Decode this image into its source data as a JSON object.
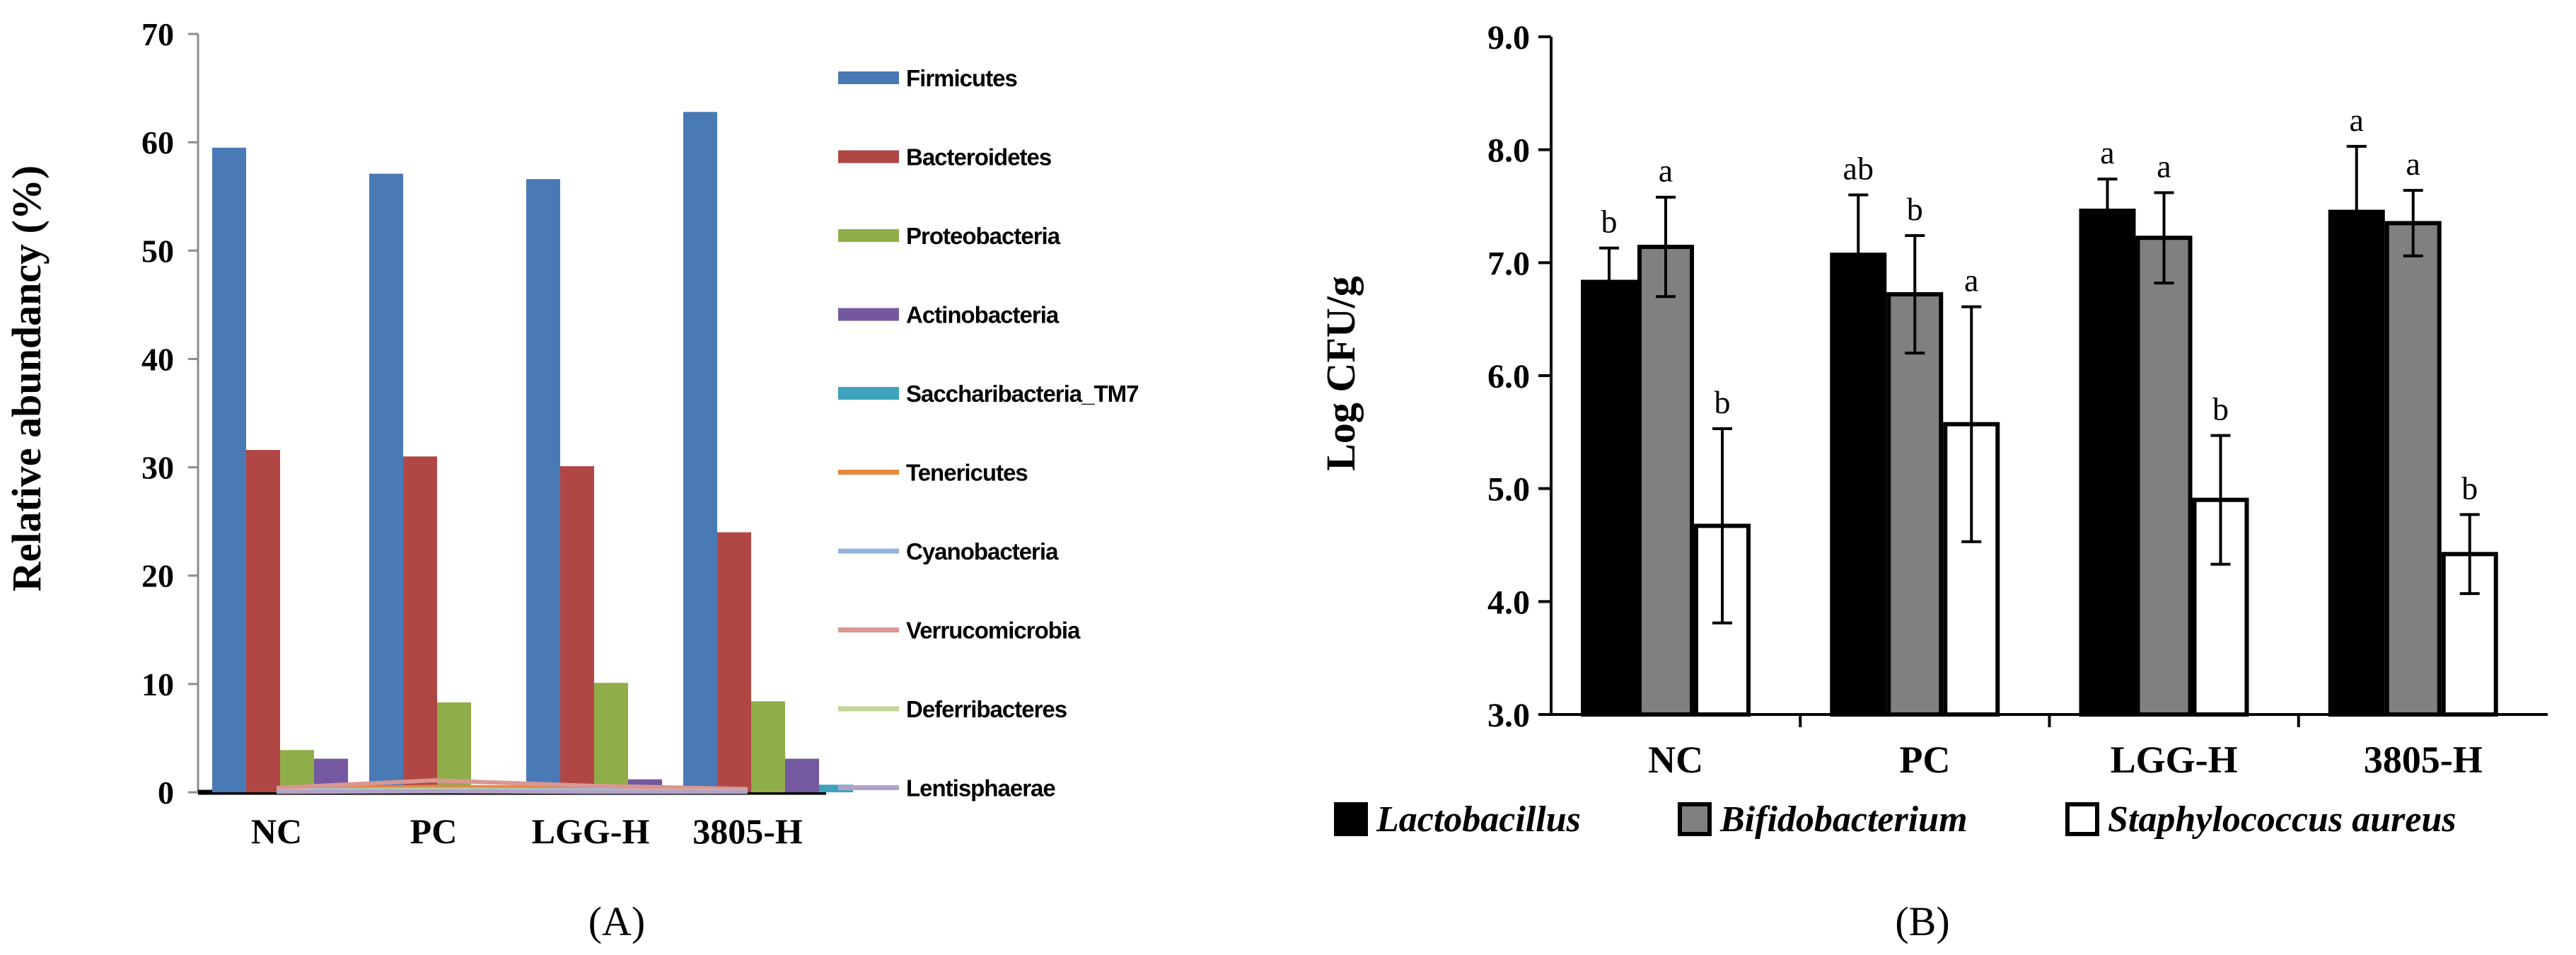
{
  "chart_data": [
    {
      "panel_label": "(A)",
      "type": "bar",
      "title": "",
      "xlabel": "",
      "ylabel": "Relative abundancy (%)",
      "ylim": [
        0,
        70
      ],
      "yticks": [
        "0",
        "10",
        "20",
        "30",
        "40",
        "50",
        "60",
        "70"
      ],
      "categories": [
        "NC",
        "PC",
        "LGG-H",
        "3805-H"
      ],
      "legend_position": "right",
      "series": [
        {
          "name": "Firmicutes",
          "color": "#4a7ab5",
          "marker": "bar",
          "values": [
            59.5,
            57.1,
            56.6,
            62.8
          ]
        },
        {
          "name": "Bacteroidetes",
          "color": "#b04745",
          "marker": "bar",
          "values": [
            31.6,
            31.0,
            30.1,
            24.0
          ]
        },
        {
          "name": "Proteobacteria",
          "color": "#8fae4a",
          "marker": "bar",
          "values": [
            3.9,
            8.3,
            10.1,
            8.4
          ]
        },
        {
          "name": "Actinobacteria",
          "color": "#7559a0",
          "marker": "bar",
          "values": [
            3.1,
            0.3,
            1.2,
            3.1
          ]
        },
        {
          "name": "Saccharibacteria_TM7",
          "color": "#3ea3bc",
          "marker": "bar",
          "values": [
            0.3,
            0.3,
            0.5,
            0.7
          ]
        },
        {
          "name": "Tenericutes",
          "color": "#e7883a",
          "marker": "line",
          "values": [
            0.3,
            0.5,
            0.4,
            0.3
          ]
        },
        {
          "name": "Cyanobacteria",
          "color": "#95b3d7",
          "marker": "line",
          "values": [
            0.2,
            0.3,
            0.2,
            0.2
          ]
        },
        {
          "name": "Verrucomicrobia",
          "color": "#d99694",
          "marker": "line",
          "values": [
            0.4,
            1.1,
            0.6,
            0.3
          ]
        },
        {
          "name": "Deferribacteres",
          "color": "#c3d69b",
          "marker": "line",
          "values": [
            0.1,
            0.2,
            0.1,
            0.1
          ]
        },
        {
          "name": "Lentisphaerae",
          "color": "#b3a2c7",
          "marker": "line",
          "values": [
            0.05,
            0.1,
            0.05,
            0.05
          ]
        }
      ]
    },
    {
      "panel_label": "(B)",
      "type": "bar",
      "title": "",
      "xlabel": "",
      "ylabel": "Log CFU/g",
      "ylim": [
        3.0,
        9.0
      ],
      "yticks": [
        "3.0",
        "4.0",
        "5.0",
        "6.0",
        "7.0",
        "8.0",
        "9.0"
      ],
      "categories": [
        "NC",
        "PC",
        "LGG-H",
        "3805-H"
      ],
      "legend_position": "bottom",
      "series": [
        {
          "name": "Lactobacillus",
          "fill": "#000000",
          "values": [
            6.83,
            7.07,
            7.46,
            7.45
          ],
          "errors": [
            0.3,
            0.53,
            0.28,
            0.58
          ],
          "labels": [
            "b",
            "ab",
            "a",
            "a"
          ]
        },
        {
          "name": "Bifidobacterium",
          "fill": "#808080",
          "values": [
            7.14,
            6.72,
            7.22,
            7.35
          ],
          "errors": [
            0.44,
            0.52,
            0.4,
            0.29
          ],
          "labels": [
            "a",
            "b",
            "a",
            "a"
          ]
        },
        {
          "name": "Staphylococcus aureus",
          "fill": "#ffffff",
          "values": [
            4.67,
            5.57,
            4.9,
            4.42
          ],
          "errors": [
            0.86,
            1.04,
            0.57,
            0.35
          ],
          "labels": [
            "b",
            "a",
            "b",
            "b"
          ]
        }
      ]
    }
  ]
}
